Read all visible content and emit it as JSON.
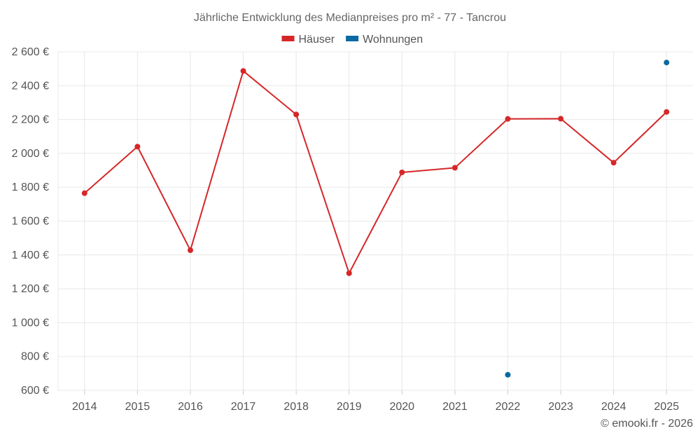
{
  "chart_data": {
    "type": "line",
    "title": "Jährliche Entwicklung des Medianpreises pro m² - 77 - Tancrou",
    "categories": [
      "2014",
      "2015",
      "2016",
      "2017",
      "2018",
      "2019",
      "2020",
      "2021",
      "2022",
      "2023",
      "2024",
      "2025"
    ],
    "series": [
      {
        "name": "Häuser",
        "color": "#d62728",
        "values": [
          1765,
          2040,
          1428,
          2487,
          2230,
          1292,
          1888,
          1915,
          2204,
          2205,
          1945,
          2245
        ]
      },
      {
        "name": "Wohnungen",
        "color": "#0b6aa2",
        "values": [
          null,
          null,
          null,
          null,
          null,
          null,
          null,
          null,
          692,
          null,
          null,
          2537
        ]
      }
    ],
    "ylim": [
      600,
      2600
    ],
    "yticks": [
      600,
      800,
      1000,
      1200,
      1400,
      1600,
      1800,
      2000,
      2200,
      2400,
      2600
    ],
    "ytick_labels": [
      "600 €",
      "800 €",
      "1 000 €",
      "1 200 €",
      "1 400 €",
      "1 600 €",
      "1 800 €",
      "2 000 €",
      "2 200 €",
      "2 400 €",
      "2 600 €"
    ],
    "xlabel": "",
    "ylabel": "",
    "grid": true,
    "legend_position": "top-center"
  },
  "credit": "© emooki.fr - 2026"
}
